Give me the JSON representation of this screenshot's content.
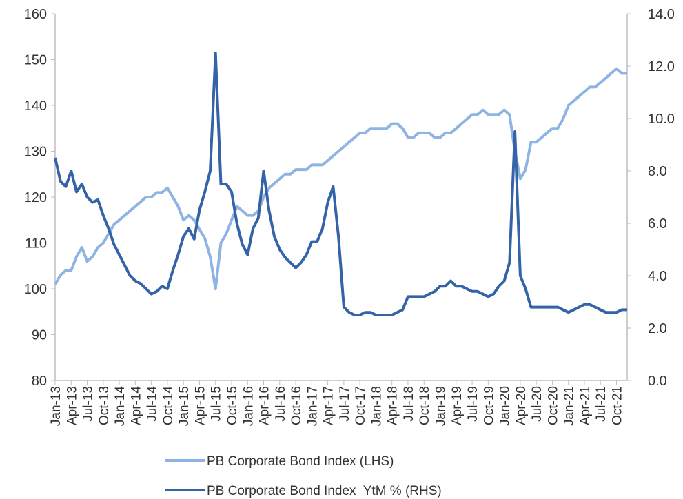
{
  "chart_data": {
    "type": "line",
    "categories": [
      "Jan-13",
      null,
      null,
      "Apr-13",
      null,
      null,
      "Jul-13",
      null,
      null,
      "Oct-13",
      null,
      null,
      "Jan-14",
      null,
      null,
      "Apr-14",
      null,
      null,
      "Jul-14",
      null,
      null,
      "Oct-14",
      null,
      null,
      "Jan-15",
      null,
      null,
      "Apr-15",
      null,
      null,
      "Jul-15",
      null,
      null,
      "Oct-15",
      null,
      null,
      "Jan-16",
      null,
      null,
      "Apr-16",
      null,
      null,
      "Jul-16",
      null,
      null,
      "Oct-16",
      null,
      null,
      "Jan-17",
      null,
      null,
      "Apr-17",
      null,
      null,
      "Jul-17",
      null,
      null,
      "Oct-17",
      null,
      null,
      "Jan-18",
      null,
      null,
      "Apr-18",
      null,
      null,
      "Jul-18",
      null,
      null,
      "Oct-18",
      null,
      null,
      "Jan-19",
      null,
      null,
      "Apr-19",
      null,
      null,
      "Jul-19",
      null,
      null,
      "Oct-19",
      null,
      null,
      "Jan-20",
      null,
      null,
      "Apr-20",
      null,
      null,
      "Jul-20",
      null,
      null,
      "Oct-20",
      null,
      null,
      "Jan-21",
      null,
      null,
      "Apr-21",
      null,
      null,
      "Jul-21",
      null,
      null,
      "Oct-21",
      null,
      null
    ],
    "series": [
      {
        "name": "PB Corporate Bond Index (LHS)",
        "color": "#8db4e2",
        "axis": "y",
        "values": [
          101,
          103,
          104,
          104,
          107,
          109,
          106,
          107,
          109,
          110,
          112,
          114,
          115,
          116,
          117,
          118,
          119,
          120,
          120,
          121,
          121,
          122,
          120,
          118,
          115,
          116,
          115,
          113,
          111,
          107,
          100,
          110,
          112,
          115,
          118,
          117,
          116,
          116,
          117,
          120,
          122,
          123,
          124,
          125,
          125,
          126,
          126,
          126,
          127,
          127,
          127,
          128,
          129,
          130,
          131,
          132,
          133,
          134,
          134,
          135,
          135,
          135,
          135,
          136,
          136,
          135,
          133,
          133,
          134,
          134,
          134,
          133,
          133,
          134,
          134,
          135,
          136,
          137,
          138,
          138,
          139,
          138,
          138,
          138,
          139,
          138,
          130,
          124,
          126,
          132,
          132,
          133,
          134,
          135,
          135,
          137,
          140,
          141,
          142,
          143,
          144,
          144,
          145,
          146,
          147,
          148,
          147,
          147
        ]
      },
      {
        "name": "PB Corporate Bond Index  YtM % (RHS)",
        "color": "#3563a8",
        "axis": "y2",
        "values": [
          8.5,
          7.6,
          7.4,
          8.0,
          7.2,
          7.5,
          7.0,
          6.8,
          6.9,
          6.3,
          5.8,
          5.2,
          4.8,
          4.4,
          4.0,
          3.8,
          3.7,
          3.5,
          3.3,
          3.4,
          3.6,
          3.5,
          4.2,
          4.8,
          5.5,
          5.8,
          5.4,
          6.5,
          7.2,
          8.0,
          12.5,
          7.5,
          7.5,
          7.2,
          6.0,
          5.2,
          4.8,
          5.8,
          6.2,
          8.0,
          6.5,
          5.5,
          5.0,
          4.7,
          4.5,
          4.3,
          4.5,
          4.8,
          5.3,
          5.3,
          5.8,
          6.8,
          7.4,
          5.5,
          2.8,
          2.6,
          2.5,
          2.5,
          2.6,
          2.6,
          2.5,
          2.5,
          2.5,
          2.5,
          2.6,
          2.7,
          3.2,
          3.2,
          3.2,
          3.2,
          3.3,
          3.4,
          3.6,
          3.6,
          3.8,
          3.6,
          3.6,
          3.5,
          3.4,
          3.4,
          3.3,
          3.2,
          3.3,
          3.6,
          3.8,
          4.5,
          9.5,
          4.0,
          3.5,
          2.8,
          2.8,
          2.8,
          2.8,
          2.8,
          2.8,
          2.7,
          2.6,
          2.7,
          2.8,
          2.9,
          2.9,
          2.8,
          2.7,
          2.6,
          2.6,
          2.6,
          2.7,
          2.7
        ]
      }
    ],
    "ylim": [
      80,
      160
    ],
    "yticks": [
      80,
      90,
      100,
      110,
      120,
      130,
      140,
      150,
      160
    ],
    "y2lim": [
      0,
      14
    ],
    "y2ticks": [
      {
        "value": 0,
        "label": "0.0"
      },
      {
        "value": 2,
        "label": "2.0"
      },
      {
        "value": 4,
        "label": "4.0"
      },
      {
        "value": 6,
        "label": "6.0"
      },
      {
        "value": 8,
        "label": "8.0"
      },
      {
        "value": 10,
        "label": "10.0"
      },
      {
        "value": 12,
        "label": "12.0"
      },
      {
        "value": 14,
        "label": "14.0"
      }
    ],
    "legend": "bottom"
  }
}
